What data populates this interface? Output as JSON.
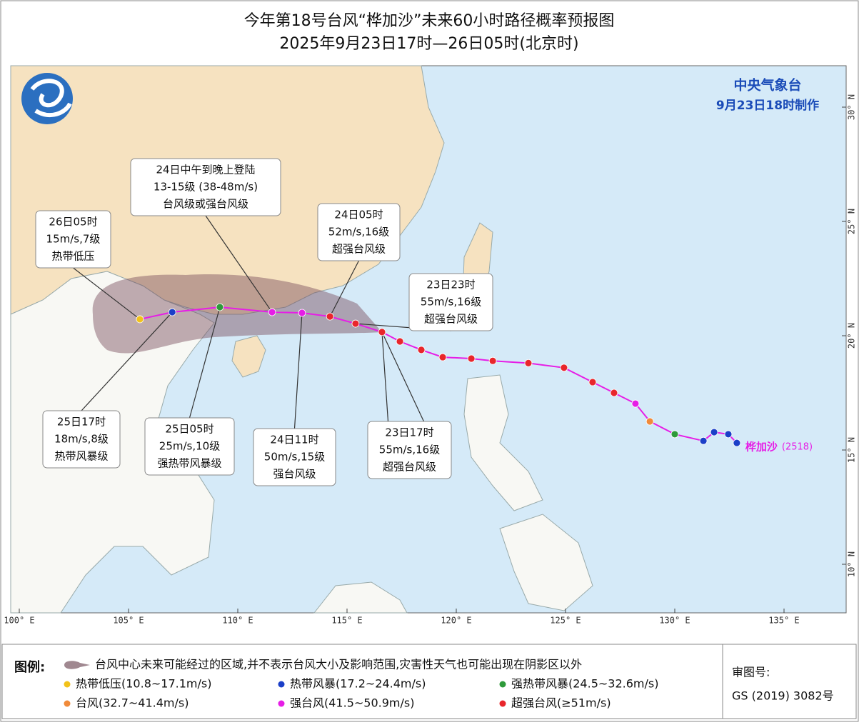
{
  "header": {
    "title": "今年第18号台风“桦加沙”未来60小时路径概率预报图",
    "subtitle": "2025年9月23日17时—26日05时(北京时)"
  },
  "agency": {
    "name": "中央气象台",
    "issued": "9月23日18时制作"
  },
  "map": {
    "lon_ticks": [
      {
        "value": 100,
        "label": "100° E"
      },
      {
        "value": 105,
        "label": "105° E"
      },
      {
        "value": 110,
        "label": "110° E"
      },
      {
        "value": 115,
        "label": "115° E"
      },
      {
        "value": 120,
        "label": "120° E"
      },
      {
        "value": 125,
        "label": "125° E"
      },
      {
        "value": 130,
        "label": "130° E"
      },
      {
        "value": 135,
        "label": "135° E"
      }
    ],
    "lat_ticks": [
      {
        "value": 10,
        "label": "10° N"
      },
      {
        "value": 15,
        "label": "15° N"
      },
      {
        "value": 20,
        "label": "20° N"
      },
      {
        "value": 25,
        "label": "25° N"
      },
      {
        "value": 30,
        "label": "30° N"
      }
    ]
  },
  "storm": {
    "name": "桦加沙",
    "code": "(2518)"
  },
  "track": {
    "forecast": [
      {
        "lon": 116.6,
        "lat": 20.16,
        "color": "#e8262b",
        "lines": [
          "23日17时",
          "55m/s,16级",
          "超强台风级"
        ]
      },
      {
        "lon": 115.39,
        "lat": 20.53,
        "color": "#e8262b",
        "lines": [
          "23日23时",
          "55m/s,16级",
          "超强台风级"
        ]
      },
      {
        "lon": 114.22,
        "lat": 20.84,
        "color": "#e8262b",
        "lines": [
          "24日05时",
          "52m/s,16级",
          "超强台风级"
        ]
      },
      {
        "lon": 112.94,
        "lat": 21.0,
        "color": "#e61ee6",
        "lines": [
          "24日11时",
          "50m/s,15级",
          "强台风级"
        ]
      },
      {
        "lon": 111.57,
        "lat": 21.03,
        "color": "#e61ee6",
        "lines": [
          "24日中午到晚上登陆",
          "13-15级 (38-48m/s)",
          "台风级或强台风级"
        ]
      },
      {
        "lon": 109.18,
        "lat": 21.25,
        "color": "#2e9a3a",
        "lines": [
          "25日05时",
          "25m/s,10级",
          "强热带风暴级"
        ]
      },
      {
        "lon": 107.0,
        "lat": 21.03,
        "color": "#1b3fc8",
        "lines": [
          "25日17时",
          "18m/s,8级",
          "热带风暴级"
        ]
      },
      {
        "lon": 105.52,
        "lat": 20.72,
        "color": "#f2c21a",
        "lines": [
          "26日05时",
          "15m/s,7级",
          "热带低压"
        ]
      }
    ],
    "past": [
      {
        "lon": 117.42,
        "lat": 19.75,
        "color": "#e8262b"
      },
      {
        "lon": 118.4,
        "lat": 19.38,
        "color": "#e8262b"
      },
      {
        "lon": 119.38,
        "lat": 19.06,
        "color": "#e8262b"
      },
      {
        "lon": 120.69,
        "lat": 19.0,
        "color": "#e8262b"
      },
      {
        "lon": 121.67,
        "lat": 18.9,
        "color": "#e8262b"
      },
      {
        "lon": 123.3,
        "lat": 18.8,
        "color": "#e8262b"
      },
      {
        "lon": 124.93,
        "lat": 18.6,
        "color": "#e8262b"
      },
      {
        "lon": 126.24,
        "lat": 17.97,
        "color": "#e8262b"
      },
      {
        "lon": 127.22,
        "lat": 17.5,
        "color": "#e8262b"
      },
      {
        "lon": 128.2,
        "lat": 17.03,
        "color": "#e61ee6"
      },
      {
        "lon": 128.86,
        "lat": 16.25,
        "color": "#f08a3a"
      },
      {
        "lon": 130.0,
        "lat": 15.69,
        "color": "#2e9a3a"
      },
      {
        "lon": 131.31,
        "lat": 15.4,
        "color": "#1b3fc8"
      },
      {
        "lon": 131.8,
        "lat": 15.78,
        "color": "#1b3fc8"
      },
      {
        "lon": 132.45,
        "lat": 15.69,
        "color": "#1b3fc8"
      },
      {
        "lon": 132.84,
        "lat": 15.31,
        "color": "#1b3fc8"
      }
    ]
  },
  "legend": {
    "title": "图例:",
    "cone": "台风中心未来可能经过的区域,并不表示台风大小及影响范围,灾害性天气也可能出现在阴影区以外",
    "items": [
      {
        "label": "热带低压(10.8~17.1m/s)",
        "color": "#f2c21a"
      },
      {
        "label": "热带风暴(17.2~24.4m/s)",
        "color": "#1b3fc8"
      },
      {
        "label": "强热带风暴(24.5~32.6m/s)",
        "color": "#2e9a3a"
      },
      {
        "label": "台风(32.7~41.4m/s)",
        "color": "#f08a3a"
      },
      {
        "label": "强台风(41.5~50.9m/s)",
        "color": "#e61ee6"
      },
      {
        "label": "超强台风(≥51m/s)",
        "color": "#e8262b"
      }
    ]
  },
  "approval": {
    "label": "审图号:",
    "number": "GS (2019) 3082号"
  }
}
